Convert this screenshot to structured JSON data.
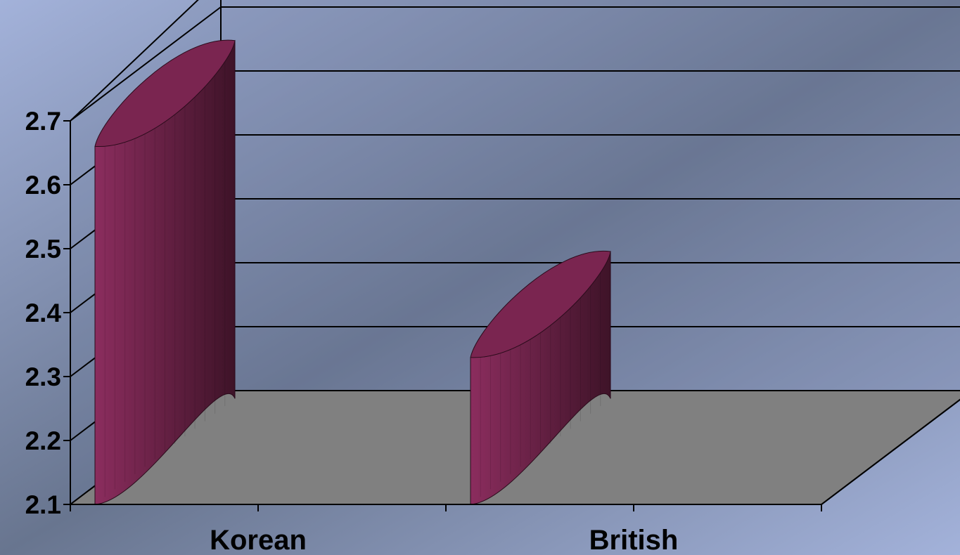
{
  "chart_data": {
    "type": "bar",
    "style": "3d-cylinder",
    "categories": [
      "Korean",
      "British"
    ],
    "values": [
      2.66,
      2.33
    ],
    "ylim": [
      2.1,
      2.7
    ],
    "yticks": [
      "2.1",
      "2.2",
      "2.3",
      "2.4",
      "2.5",
      "2.6",
      "2.7"
    ],
    "title": "",
    "xlabel": "",
    "ylabel": "",
    "grid": true,
    "legend": "none"
  },
  "colors": {
    "background_light": "#A3B2DA",
    "background_dark": "#68758F",
    "wall": "#6E7D9E",
    "floor": "#808080",
    "bar_front": "#8B2D5E",
    "bar_side": "#3E1328",
    "bar_top": "#7A2550",
    "axis": "#000000"
  }
}
